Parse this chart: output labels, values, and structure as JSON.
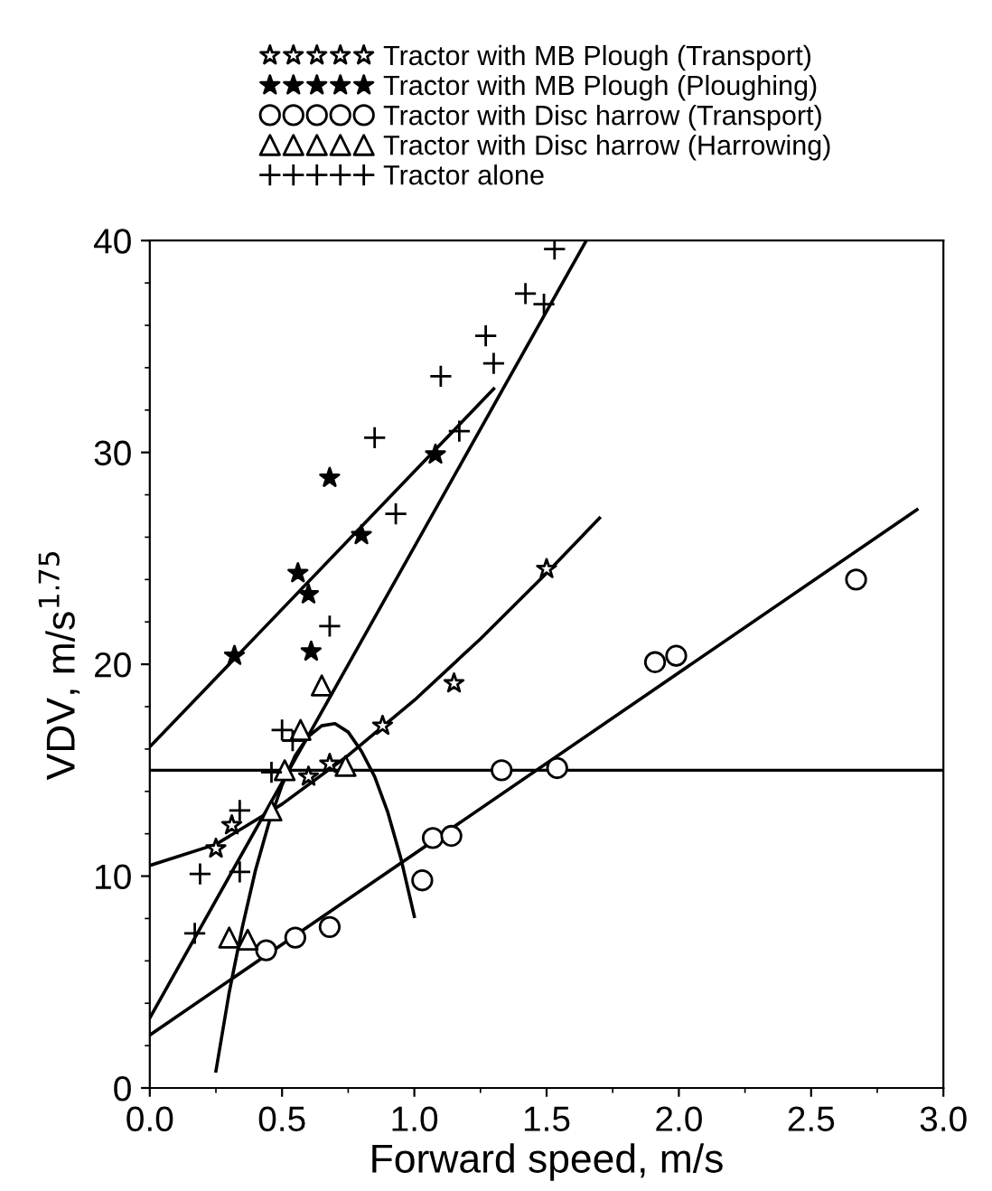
{
  "chart_data": {
    "type": "scatter",
    "xlabel": "Forward speed, m/s",
    "ylabel": "VDV, m/s$^{1.75}$",
    "series": [
      {
        "name": "Tractor with MB Plough (Transport)",
        "color": "#ffffff",
        "marker": "star",
        "x": [
          0.25,
          0.31,
          0.6,
          0.68,
          0.88,
          1.15,
          1.5
        ],
        "values": [
          11.3,
          12.4,
          14.7,
          15.3,
          17.1,
          19.1,
          24.5
        ]
      },
      {
        "name": "Tractor with MB Plough (Ploughing)",
        "color": "#000000",
        "marker": "star",
        "x": [
          0.32,
          0.56,
          0.6,
          0.61,
          0.68,
          0.8,
          1.08
        ],
        "values": [
          20.4,
          24.3,
          23.3,
          20.6,
          28.8,
          26.1,
          29.9
        ]
      },
      {
        "name": "Tractor with Disc harrow (Transport)",
        "color": "#ffffff",
        "marker": "circle",
        "x": [
          0.44,
          0.55,
          0.68,
          1.03,
          1.07,
          1.14,
          1.33,
          1.54,
          1.91,
          1.99,
          2.67
        ],
        "values": [
          6.5,
          7.1,
          7.6,
          9.8,
          11.8,
          11.9,
          15.0,
          15.1,
          20.1,
          20.4,
          24.0
        ]
      },
      {
        "name": "Tractor with Disc harrow (Harrowing)",
        "color": "#ffffff",
        "marker": "triangle",
        "x": [
          0.3,
          0.37,
          0.46,
          0.51,
          0.57,
          0.65,
          0.74
        ],
        "values": [
          7.1,
          7.0,
          13.1,
          15.0,
          16.9,
          19.0,
          15.2
        ]
      },
      {
        "name": "Tractor alone",
        "color": "#000000",
        "marker": "cross",
        "x": [
          0.17,
          0.19,
          0.34,
          0.34,
          0.46,
          0.5,
          0.54,
          0.68,
          0.85,
          0.93,
          1.1,
          1.17,
          1.27,
          1.3,
          1.42,
          1.49,
          1.53
        ],
        "values": [
          7.3,
          10.1,
          10.2,
          13.1,
          14.9,
          16.9,
          16.4,
          21.8,
          30.7,
          27.1,
          33.6,
          31.0,
          35.5,
          34.2,
          37.5,
          37.0,
          39.6
        ]
      },
      {
        "type": "line",
        "color": "#000000",
        "marker": "none",
        "x": [
          0,
          1.3
        ],
        "values": [
          16.1,
          33.0
        ]
      },
      {
        "type": "line",
        "color": "#000000",
        "marker": "none",
        "x": [
          0,
          1.65
        ],
        "values": [
          3.3,
          40
        ]
      },
      {
        "type": "line",
        "color": "#000000",
        "marker": "none",
        "x": [
          0,
          0.25,
          0.5,
          0.75,
          1.0,
          1.25,
          1.5,
          1.7
        ],
        "values": [
          10.5,
          11.5,
          13.4,
          15.7,
          18.3,
          21.2,
          24.3,
          26.9
        ]
      },
      {
        "type": "line",
        "color": "#000000",
        "marker": "none",
        "x": [
          0,
          2.9
        ],
        "values": [
          2.5,
          27.3
        ]
      },
      {
        "type": "line",
        "color": "#000000",
        "marker": "none",
        "x": [
          0.25,
          0.3,
          0.35,
          0.4,
          0.45,
          0.5,
          0.55,
          0.6,
          0.65,
          0.7,
          0.75,
          0.8,
          0.85,
          0.9,
          0.95,
          1.0
        ],
        "values": [
          0.8,
          4.5,
          7.6,
          10.3,
          12.5,
          14.3,
          15.7,
          16.6,
          17.1,
          17.2,
          16.8,
          15.9,
          14.7,
          13.0,
          10.8,
          8.1
        ]
      }
    ],
    "ref_lines": [
      {
        "axis": "y",
        "value": 15,
        "color": "#000000",
        "line_style": "solid"
      }
    ],
    "xlim": [
      0,
      3
    ],
    "ylim": [
      0,
      40
    ],
    "xticks": [
      {
        "value": 0,
        "label": "0.0"
      },
      {
        "value": 0.5,
        "label": "0.5"
      },
      {
        "value": 1,
        "label": "1.0"
      },
      {
        "value": 1.5,
        "label": "1.5"
      },
      {
        "value": 2,
        "label": "2.0"
      },
      {
        "value": 2.5,
        "label": "2.5"
      },
      {
        "value": 3,
        "label": "3.0"
      }
    ],
    "yticks": [
      0,
      10,
      20,
      30,
      40
    ],
    "grid": false,
    "legend": "top"
  }
}
